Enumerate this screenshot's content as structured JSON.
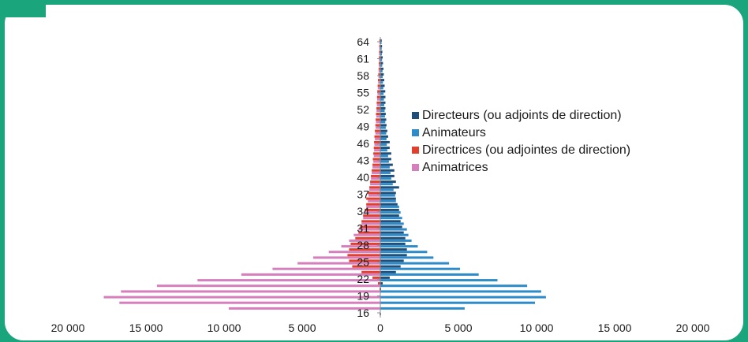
{
  "chart_data": {
    "type": "bar",
    "orientation": "horizontal-pyramid",
    "ages": [
      16,
      17,
      18,
      19,
      20,
      21,
      22,
      23,
      24,
      25,
      26,
      27,
      28,
      29,
      30,
      31,
      32,
      33,
      34,
      35,
      36,
      37,
      38,
      39,
      40,
      41,
      42,
      43,
      44,
      45,
      46,
      47,
      48,
      49,
      50,
      51,
      52,
      53,
      54,
      55,
      56,
      57,
      58,
      59,
      60,
      61,
      62,
      63,
      64
    ],
    "y_tick_labels": [
      "16",
      "19",
      "22",
      "25",
      "28",
      "31",
      "34",
      "37",
      "40",
      "43",
      "46",
      "49",
      "52",
      "55",
      "58",
      "61",
      "64"
    ],
    "x_tick_labels": [
      "20 000",
      "15 000",
      "10 000",
      "5 000",
      "0",
      "5 000",
      "10 000",
      "15 000",
      "20 000"
    ],
    "xlim": [
      -20000,
      20000
    ],
    "legend_position": "right",
    "grid": false,
    "series": [
      {
        "name": "Directeurs (ou adjoints de direction)",
        "color": "#1f4e79",
        "side": "right",
        "values": [
          0,
          0,
          0,
          0,
          50,
          150,
          600,
          1000,
          1300,
          1500,
          1700,
          1700,
          1600,
          1600,
          1500,
          1400,
          1300,
          1200,
          1200,
          1100,
          1000,
          1000,
          1200,
          1000,
          900,
          900,
          800,
          700,
          700,
          600,
          600,
          500,
          450,
          400,
          380,
          350,
          330,
          330,
          330,
          320,
          280,
          250,
          220,
          200,
          170,
          150,
          130,
          110,
          90
        ]
      },
      {
        "name": "Animateurs",
        "color": "#2e8bc9",
        "side": "right",
        "values": [
          50,
          5400,
          9900,
          10600,
          10300,
          9400,
          7500,
          6300,
          5100,
          4400,
          3400,
          3000,
          2400,
          2000,
          1800,
          1700,
          1500,
          1400,
          1300,
          1200,
          1000,
          950,
          850,
          800,
          700,
          650,
          600,
          550,
          500,
          450,
          420,
          400,
          380,
          350,
          320,
          300,
          280,
          250,
          230,
          210,
          190,
          170,
          150,
          140,
          120,
          110,
          100,
          90,
          80
        ]
      },
      {
        "name": "Directrices (ou adjointes de direction)",
        "color": "#e0402c",
        "side": "left",
        "values": [
          0,
          0,
          0,
          0,
          50,
          150,
          500,
          1200,
          1800,
          2000,
          2100,
          2000,
          1900,
          1600,
          1400,
          1300,
          1200,
          1100,
          1000,
          900,
          900,
          800,
          700,
          650,
          600,
          550,
          500,
          480,
          450,
          420,
          400,
          380,
          350,
          320,
          300,
          280,
          250,
          230,
          210,
          190,
          170,
          150,
          130,
          110,
          100,
          90,
          80,
          70,
          60
        ]
      },
      {
        "name": "Animatrices",
        "color": "#d67fbd",
        "side": "left",
        "values": [
          50,
          9700,
          16700,
          17700,
          16600,
          14300,
          11700,
          8900,
          6900,
          5300,
          4300,
          3300,
          2500,
          2000,
          1700,
          1400,
          1200,
          1100,
          1000,
          900,
          800,
          750,
          700,
          650,
          600,
          550,
          500,
          450,
          420,
          400,
          380,
          350,
          320,
          300,
          280,
          260,
          240,
          220,
          200,
          180,
          160,
          140,
          120,
          110,
          100,
          90,
          80,
          70,
          60
        ]
      }
    ]
  }
}
